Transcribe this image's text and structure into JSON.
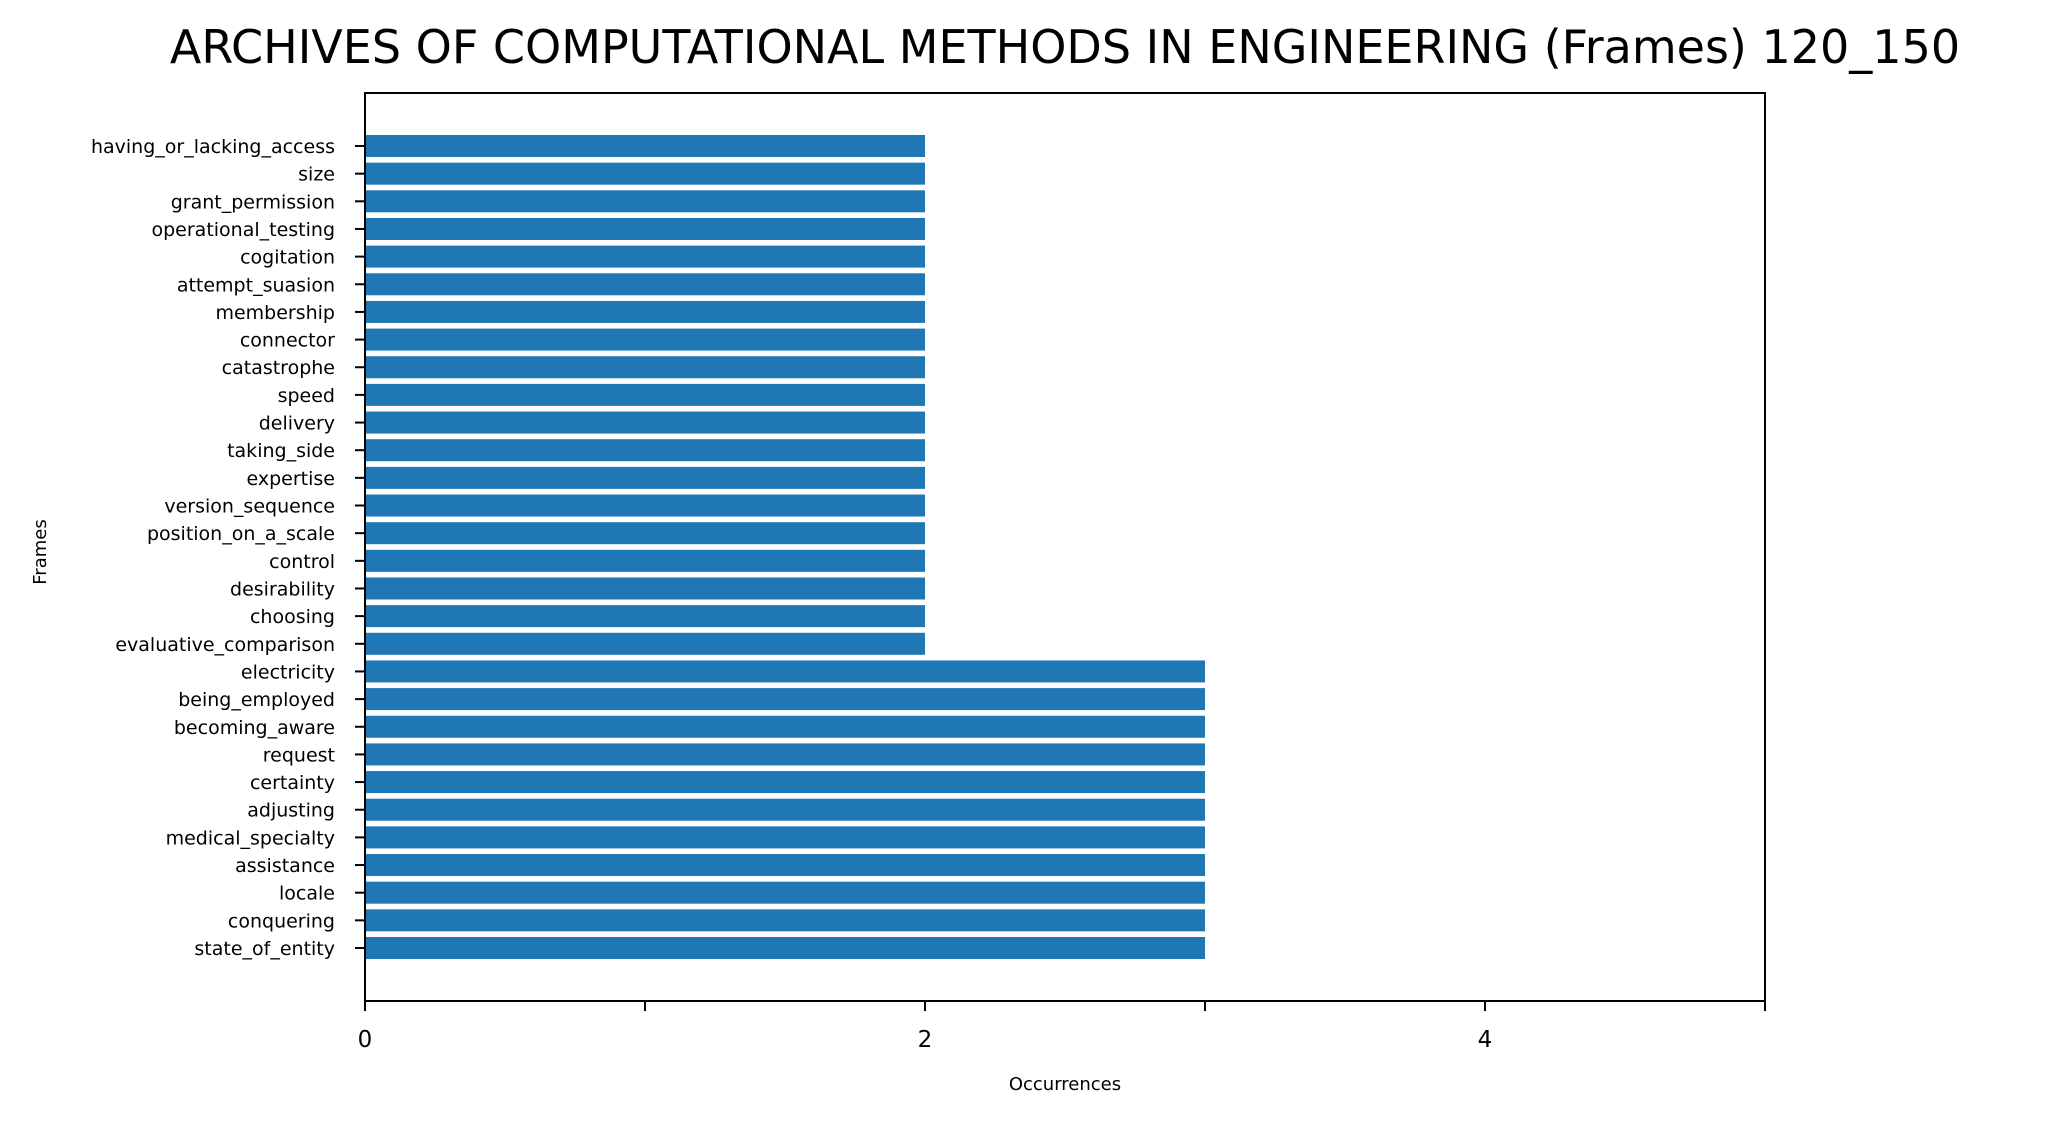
{
  "chart_data": {
    "type": "bar",
    "orientation": "horizontal",
    "title": "ARCHIVES OF COMPUTATIONAL METHODS IN ENGINEERING (Frames) 120_150",
    "xlabel": "Occurrences",
    "ylabel": "Frames",
    "xlim": [
      0,
      5
    ],
    "x_ticks": [
      0,
      1,
      2,
      3,
      4,
      5
    ],
    "x_tick_labels": [
      "0",
      "",
      "2",
      "",
      "4",
      ""
    ],
    "grid": false,
    "bar_color": "#1f77b4",
    "categories": [
      "having_or_lacking_access",
      "size",
      "grant_permission",
      "operational_testing",
      "cogitation",
      "attempt_suasion",
      "membership",
      "connector",
      "catastrophe",
      "speed",
      "delivery",
      "taking_side",
      "expertise",
      "version_sequence",
      "position_on_a_scale",
      "control",
      "desirability",
      "choosing",
      "evaluative_comparison",
      "electricity",
      "being_employed",
      "becoming_aware",
      "request",
      "certainty",
      "adjusting",
      "medical_specialty",
      "assistance",
      "locale",
      "conquering",
      "state_of_entity"
    ],
    "values": [
      2,
      2,
      2,
      2,
      2,
      2,
      2,
      2,
      2,
      2,
      2,
      2,
      2,
      2,
      2,
      2,
      2,
      2,
      2,
      3,
      3,
      3,
      3,
      3,
      3,
      3,
      3,
      3,
      3,
      3
    ]
  }
}
